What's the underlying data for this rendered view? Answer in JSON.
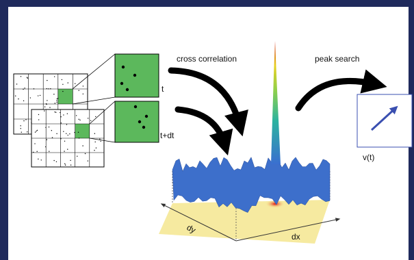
{
  "labels": {
    "cross_correlation": "cross correlation",
    "peak_search": "peak search",
    "frame_t": "t",
    "frame_t_dt": "t+dt",
    "velocity": "v(t)",
    "axis_dy": "dy",
    "axis_dx": "dx"
  }
}
